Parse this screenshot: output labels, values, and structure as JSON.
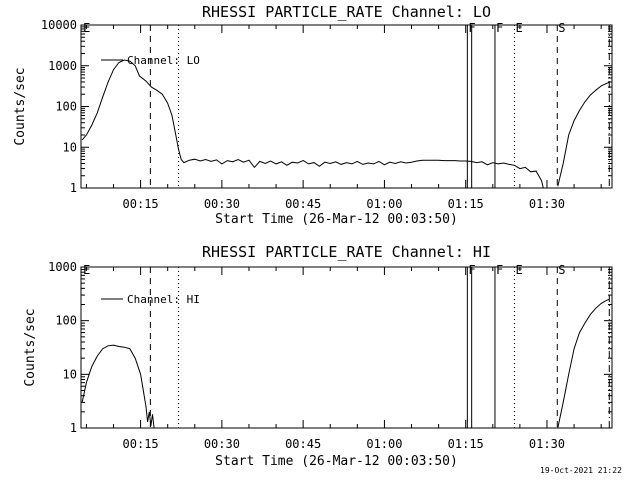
{
  "footer_stamp": "19-Oct-2021 21:22",
  "chart_data": [
    {
      "type": "line",
      "title": "RHESSI PARTICLE_RATE Channel: LO",
      "xlabel": "Start Time (26-Mar-12 00:03:50)",
      "ylabel": "Counts/sec",
      "yscale": "log",
      "ylim": [
        1,
        10000
      ],
      "xlim_min": [
        4,
        102
      ],
      "ytick_labels": [
        "1",
        "10",
        "100",
        "1000",
        "10000"
      ],
      "xtick_labels": [
        "00:15",
        "00:30",
        "00:45",
        "01:00",
        "01:15",
        "01:30"
      ],
      "legend": "Channel: LO",
      "event_markers": [
        {
          "label": "E",
          "x_min": 4.2,
          "style": "none"
        },
        {
          "label": "",
          "x_min": 16.8,
          "style": "dashed"
        },
        {
          "label": "",
          "x_min": 22.0,
          "style": "dotted"
        },
        {
          "label": "F",
          "x_min": 75.3,
          "style": "solid"
        },
        {
          "label": "",
          "x_min": 76.1,
          "style": "solid"
        },
        {
          "label": "F",
          "x_min": 80.4,
          "style": "solid"
        },
        {
          "label": "E",
          "x_min": 84.0,
          "style": "dotted"
        },
        {
          "label": "S",
          "x_min": 91.9,
          "style": "dashed"
        },
        {
          "label": "",
          "x_min": 101.5,
          "style": "dashdot"
        }
      ],
      "series": [
        {
          "name": "Channel: LO",
          "segments": [
            [
              [
                4.2,
                15
              ],
              [
                5,
                20
              ],
              [
                6,
                35
              ],
              [
                7,
                70
              ],
              [
                8,
                170
              ],
              [
                9,
                400
              ],
              [
                10,
                800
              ],
              [
                11,
                1200
              ],
              [
                12,
                1380
              ],
              [
                13,
                1300
              ],
              [
                14,
                1000
              ],
              [
                14.8,
                560
              ],
              [
                16,
                420
              ],
              [
                17,
                300
              ],
              [
                18,
                250
              ],
              [
                19,
                200
              ],
              [
                20,
                120
              ],
              [
                20.8,
                60
              ],
              [
                21.5,
                20
              ],
              [
                22,
                9
              ],
              [
                22.5,
                5
              ]
            ],
            [
              [
                22.5,
                5
              ],
              [
                23,
                4.2
              ],
              [
                24,
                4.8
              ],
              [
                25,
                5.1
              ],
              [
                26,
                4.6
              ],
              [
                27,
                5.0
              ],
              [
                28,
                4.5
              ],
              [
                29,
                4.9
              ],
              [
                30,
                3.9
              ],
              [
                31,
                4.7
              ],
              [
                32,
                4.4
              ],
              [
                33,
                5.0
              ],
              [
                34,
                4.3
              ],
              [
                35,
                4.8
              ],
              [
                36,
                3.2
              ],
              [
                37,
                4.5
              ],
              [
                38,
                4.0
              ],
              [
                39,
                4.6
              ],
              [
                40,
                3.9
              ],
              [
                41,
                4.4
              ],
              [
                42,
                3.6
              ],
              [
                43,
                4.3
              ],
              [
                44,
                4.1
              ],
              [
                45,
                4.7
              ],
              [
                46,
                3.9
              ],
              [
                47,
                4.2
              ],
              [
                48,
                3.4
              ],
              [
                49,
                4.3
              ],
              [
                50,
                4.0
              ],
              [
                51,
                4.4
              ],
              [
                52,
                3.8
              ],
              [
                53,
                4.2
              ],
              [
                54,
                3.9
              ],
              [
                55,
                4.5
              ],
              [
                56,
                3.8
              ],
              [
                57,
                4.1
              ],
              [
                58,
                3.9
              ],
              [
                59,
                4.5
              ],
              [
                60,
                3.7
              ],
              [
                61,
                4.3
              ],
              [
                62,
                4.0
              ],
              [
                63,
                4.4
              ],
              [
                64,
                4.1
              ],
              [
                65,
                4.3
              ],
              [
                66,
                4.6
              ],
              [
                67,
                4.8
              ],
              [
                68,
                4.8
              ],
              [
                69,
                4.8
              ],
              [
                70,
                4.8
              ],
              [
                71,
                4.7
              ],
              [
                72,
                4.7
              ],
              [
                73,
                4.7
              ],
              [
                74,
                4.6
              ],
              [
                75,
                4.6
              ],
              [
                76,
                4.5
              ],
              [
                77,
                4.2
              ],
              [
                78,
                4.4
              ],
              [
                79,
                3.7
              ],
              [
                80,
                4.2
              ],
              [
                81,
                3.9
              ],
              [
                82,
                4.1
              ],
              [
                83,
                3.8
              ],
              [
                84,
                3.6
              ],
              [
                85,
                3.0
              ],
              [
                86,
                3.2
              ],
              [
                87,
                2.5
              ],
              [
                88,
                2.6
              ],
              [
                89,
                1.5
              ],
              [
                89.4,
                0.9
              ]
            ],
            [
              [
                92,
                1.1
              ],
              [
                93,
                4
              ],
              [
                94,
                20
              ],
              [
                95,
                45
              ],
              [
                96,
                80
              ],
              [
                97,
                130
              ],
              [
                98,
                190
              ],
              [
                99,
                250
              ],
              [
                100,
                320
              ],
              [
                101,
                370
              ],
              [
                101.5,
                390
              ]
            ]
          ]
        }
      ]
    },
    {
      "type": "line",
      "title": "RHESSI PARTICLE_RATE Channel: HI",
      "xlabel": "Start Time (26-Mar-12 00:03:50)",
      "ylabel": "Counts/sec",
      "yscale": "log",
      "ylim": [
        1,
        1000
      ],
      "xlim_min": [
        4,
        102
      ],
      "ytick_labels": [
        "1",
        "10",
        "100",
        "1000"
      ],
      "xtick_labels": [
        "00:15",
        "00:30",
        "00:45",
        "01:00",
        "01:15",
        "01:30"
      ],
      "legend": "Channel: HI",
      "event_markers": [
        {
          "label": "E",
          "x_min": 4.2,
          "style": "none"
        },
        {
          "label": "",
          "x_min": 16.8,
          "style": "dashed"
        },
        {
          "label": "",
          "x_min": 22.0,
          "style": "dotted"
        },
        {
          "label": "F",
          "x_min": 75.3,
          "style": "solid"
        },
        {
          "label": "",
          "x_min": 76.1,
          "style": "solid"
        },
        {
          "label": "F",
          "x_min": 80.4,
          "style": "solid"
        },
        {
          "label": "E",
          "x_min": 84.0,
          "style": "dotted"
        },
        {
          "label": "S",
          "x_min": 91.9,
          "style": "dashed"
        },
        {
          "label": "",
          "x_min": 101.5,
          "style": "dashdot"
        }
      ],
      "series": [
        {
          "name": "Channel: HI",
          "segments": [
            [
              [
                4.2,
                3
              ],
              [
                5,
                7
              ],
              [
                6,
                14
              ],
              [
                7,
                22
              ],
              [
                8,
                30
              ],
              [
                9,
                34
              ],
              [
                10,
                35
              ],
              [
                11,
                33
              ],
              [
                12,
                32
              ],
              [
                13,
                30
              ],
              [
                14,
                20
              ],
              [
                15,
                10
              ],
              [
                15.5,
                5
              ],
              [
                16,
                2.5
              ],
              [
                16.3,
                1.3
              ],
              [
                16.6,
                2.0
              ],
              [
                16.9,
                1.1
              ],
              [
                17.2,
                1.8
              ],
              [
                17.5,
                1.0
              ]
            ],
            [
              [
                92,
                1.0
              ],
              [
                93,
                3
              ],
              [
                94,
                10
              ],
              [
                95,
                30
              ],
              [
                96,
                60
              ],
              [
                97,
                90
              ],
              [
                98,
                130
              ],
              [
                99,
                170
              ],
              [
                100,
                210
              ],
              [
                101,
                240
              ],
              [
                101.5,
                250
              ]
            ]
          ]
        }
      ]
    }
  ]
}
